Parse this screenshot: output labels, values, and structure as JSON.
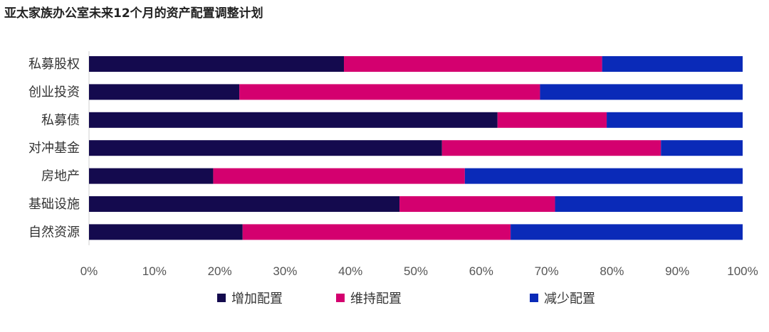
{
  "title": "亚太家族办公室未来12个月的资产配置调整计划",
  "chart_data": {
    "type": "bar",
    "orientation": "horizontal",
    "stacked": true,
    "normalized": true,
    "categories": [
      "私募股权",
      "创业投资",
      "私募债",
      "对冲基金",
      "房地产",
      "基础设施",
      "自然资源"
    ],
    "series": [
      {
        "name": "增加配置",
        "color": "#140a4e",
        "values": [
          39,
          23,
          62.5,
          54,
          19,
          47.5,
          23.5
        ]
      },
      {
        "name": "维持配置",
        "color": "#d4006f",
        "values": [
          39.5,
          46,
          16.7,
          33.5,
          38.5,
          23.8,
          41
        ]
      },
      {
        "name": "减少配置",
        "color": "#0a2ab8",
        "values": [
          21.5,
          31,
          20.8,
          12.5,
          42.5,
          28.7,
          35.5
        ]
      }
    ],
    "x_ticks": [
      "0%",
      "10%",
      "20%",
      "30%",
      "40%",
      "50%",
      "60%",
      "70%",
      "80%",
      "90%",
      "100%"
    ],
    "xlim": [
      0,
      100
    ],
    "grid": false,
    "legend_position": "bottom"
  }
}
